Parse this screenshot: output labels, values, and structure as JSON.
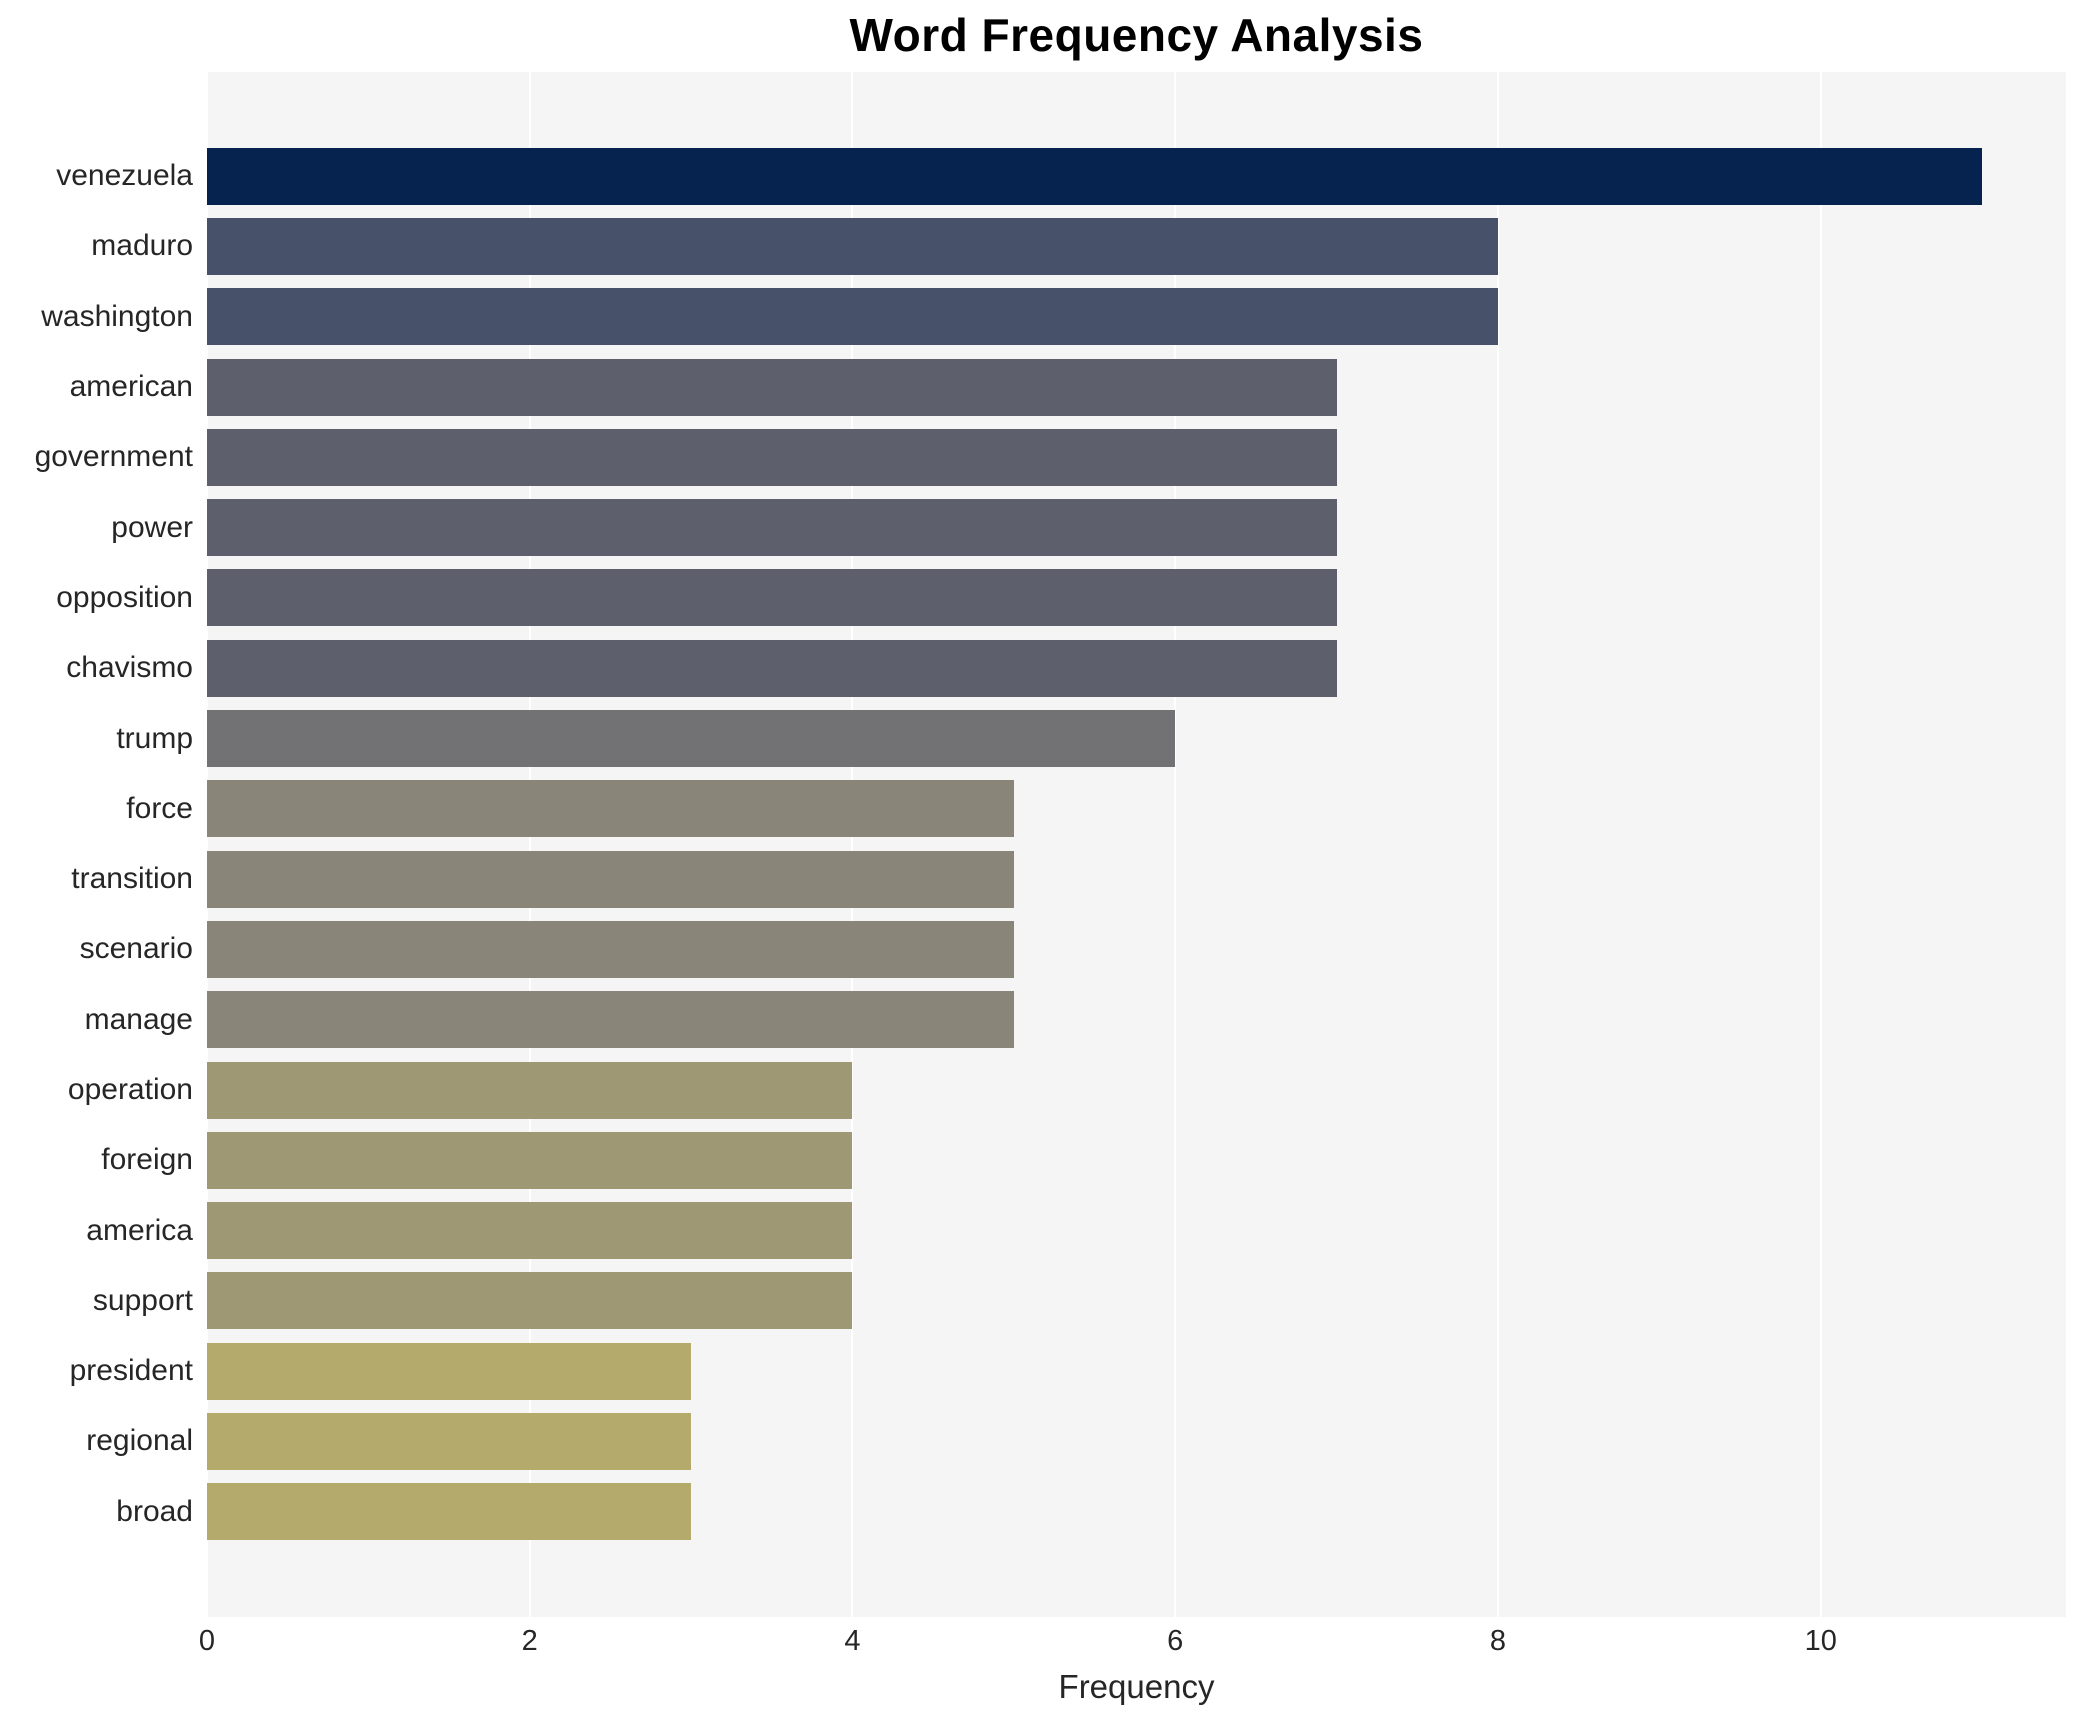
{
  "title": "Word Frequency Analysis",
  "xlabel": "Frequency",
  "plot": {
    "background": "#f5f5f5",
    "gridline_color": "#ffffff"
  },
  "chart_data": {
    "type": "bar",
    "orientation": "horizontal",
    "title": "Word Frequency Analysis",
    "xlabel": "Frequency",
    "ylabel": "",
    "grid": true,
    "xlim": [
      0,
      11.52
    ],
    "x_ticks": [
      0,
      2,
      4,
      6,
      8,
      10
    ],
    "categories": [
      "venezuela",
      "maduro",
      "washington",
      "american",
      "government",
      "power",
      "opposition",
      "chavismo",
      "trump",
      "force",
      "transition",
      "scenario",
      "manage",
      "operation",
      "foreign",
      "america",
      "support",
      "president",
      "regional",
      "broad"
    ],
    "values": [
      11,
      8,
      8,
      7,
      7,
      7,
      7,
      7,
      6,
      5,
      5,
      5,
      5,
      4,
      4,
      4,
      4,
      3,
      3,
      3
    ],
    "bar_colors": [
      "#05234e",
      "#475169",
      "#475169",
      "#5d606c",
      "#5d606c",
      "#5d606c",
      "#5d606c",
      "#5d606c",
      "#727174",
      "#898578",
      "#898578",
      "#898578",
      "#898578",
      "#9f9874",
      "#9f9874",
      "#9f9874",
      "#9f9874",
      "#b4aa6b",
      "#b4aa6b",
      "#b4aa6b"
    ]
  }
}
